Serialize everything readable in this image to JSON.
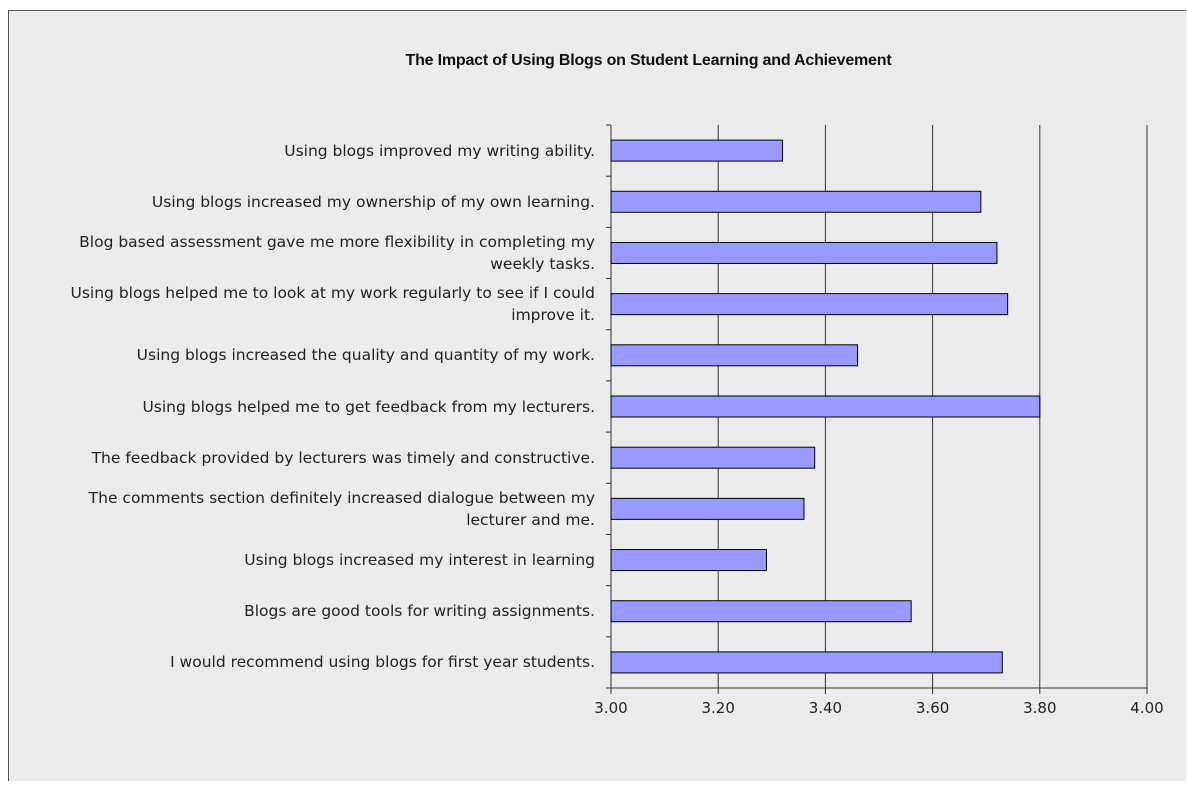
{
  "chart_data": {
    "type": "bar",
    "orientation": "horizontal",
    "title": "The Impact of Using Blogs on Student Learning and Achievement",
    "xlabel": "",
    "ylabel": "",
    "xlim": [
      3.0,
      4.0
    ],
    "ticks": [
      "3.00",
      "3.20",
      "3.40",
      "3.60",
      "3.80",
      "4.00"
    ],
    "grid": "vertical",
    "legend": "none",
    "bar_color": "#9999ff",
    "categories": [
      "Using blogs improved my writing ability.",
      "Using blogs increased my ownership of my own learning.",
      "Blog based assessment gave me more flexibility in completing my weekly tasks.",
      "Using blogs helped me to look at my work regularly to see if I could improve it.",
      "Using blogs increased the quality and quantity of my work.",
      "Using blogs helped me to get feedback from my lecturers.",
      "The feedback provided by lecturers was timely and constructive.",
      "The comments section definitely increased dialogue between my lecturer and me.",
      "Using blogs increased my interest in learning",
      "Blogs are good tools for writing assignments.",
      "I would recommend using blogs for first year students."
    ],
    "values": [
      3.32,
      3.69,
      3.72,
      3.74,
      3.46,
      3.8,
      3.38,
      3.36,
      3.29,
      3.56,
      3.73
    ]
  }
}
